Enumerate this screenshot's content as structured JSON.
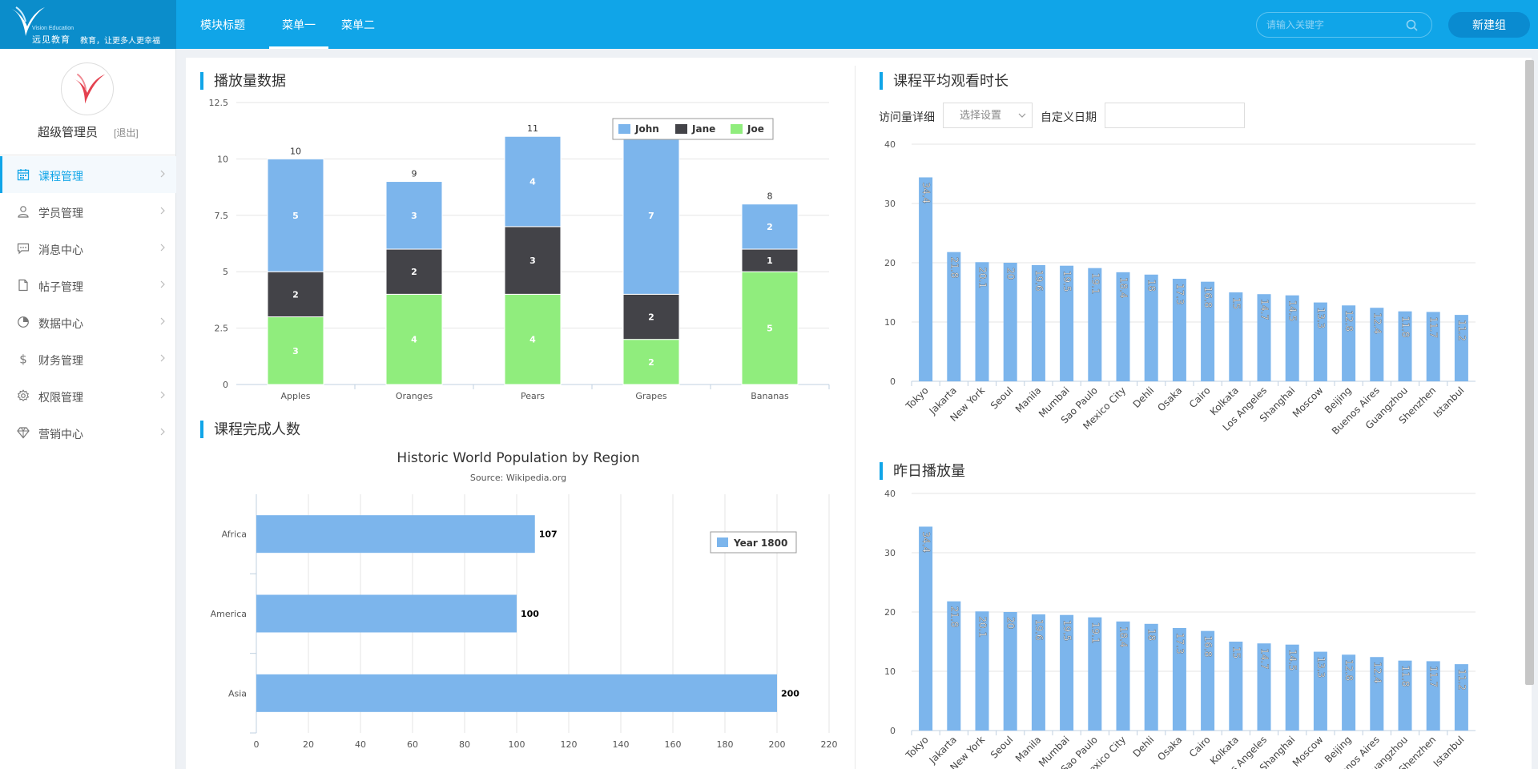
{
  "header": {
    "logo_en": "Vision Education",
    "logo_cn": "远见教育",
    "logo_slogan": "教育，让更多人更幸福",
    "nav": [
      {
        "label": "模块标题"
      },
      {
        "label": "菜单一"
      },
      {
        "label": "菜单二"
      }
    ],
    "search_placeholder": "请输入关键字",
    "new_button": "新建组"
  },
  "sidebar": {
    "admin_name": "超级管理员",
    "logout": "[退出]",
    "items": [
      {
        "label": "课程管理",
        "icon": "calendar-icon",
        "active": true
      },
      {
        "label": "学员管理",
        "icon": "user-icon"
      },
      {
        "label": "消息中心",
        "icon": "message-icon"
      },
      {
        "label": "帖子管理",
        "icon": "document-icon"
      },
      {
        "label": "数据中心",
        "icon": "pie-chart-icon"
      },
      {
        "label": "财务管理",
        "icon": "dollar-icon"
      },
      {
        "label": "权限管理",
        "icon": "gear-icon"
      },
      {
        "label": "营销中心",
        "icon": "diamond-icon"
      }
    ]
  },
  "sections": {
    "play_data": "播放量数据",
    "completion": "课程完成人数",
    "avg_watch": "课程平均观看时长",
    "yesterday": "昨日播放量"
  },
  "filters": {
    "visit_detail": "访问量详细",
    "select_placeholder": "选择设置",
    "custom_date": "自定义日期"
  },
  "colors": {
    "accent": "#10a5e8",
    "john": "#7cb5ec",
    "jane": "#434348",
    "joe": "#90ed7d"
  },
  "chart_data": [
    {
      "type": "bar",
      "stacked": true,
      "categories": [
        "Apples",
        "Oranges",
        "Pears",
        "Grapes",
        "Bananas"
      ],
      "series": [
        {
          "name": "John",
          "values": [
            5,
            3,
            4,
            7,
            2
          ]
        },
        {
          "name": "Jane",
          "values": [
            2,
            2,
            3,
            2,
            1
          ]
        },
        {
          "name": "Joe",
          "values": [
            3,
            4,
            4,
            2,
            5
          ]
        }
      ],
      "totals": [
        10,
        9,
        11,
        11,
        8
      ],
      "yticks": [
        "0",
        "2.5",
        "5",
        "7.5",
        "10",
        "12.5"
      ],
      "ylim": [
        0,
        12.5
      ],
      "legend": "top-right",
      "grid": true
    },
    {
      "type": "bar",
      "orientation": "horizontal",
      "title": "Historic World Population by Region",
      "subtitle": "Source: Wikipedia.org",
      "categories": [
        "Africa",
        "America",
        "Asia"
      ],
      "series": [
        {
          "name": "Year 1800",
          "values": [
            107,
            100,
            200
          ]
        }
      ],
      "xticks": [
        "0",
        "20",
        "40",
        "60",
        "80",
        "100",
        "120",
        "140",
        "160",
        "180",
        "200",
        "220"
      ],
      "xlim": [
        0,
        220
      ],
      "legend": "top-right",
      "grid": true
    },
    {
      "type": "bar",
      "categories": [
        "Tokyo",
        "Jakarta",
        "New York",
        "Seoul",
        "Manila",
        "Mumbai",
        "Sao Paulo",
        "Mexico City",
        "Dehli",
        "Osaka",
        "Cairo",
        "Kolkata",
        "Los Angeles",
        "Shanghai",
        "Moscow",
        "Beijing",
        "Buenos Aires",
        "Guangzhou",
        "Shenzhen",
        "Istanbul"
      ],
      "values": [
        34.4,
        21.8,
        20.1,
        20,
        19.6,
        19.5,
        19.1,
        18.4,
        18,
        17.3,
        16.8,
        15,
        14.7,
        14.5,
        13.3,
        12.8,
        12.4,
        11.8,
        11.7,
        11.2
      ],
      "labels": [
        "34.4",
        "21.8",
        "20.1",
        "20",
        "19.6",
        "19.5",
        "19.1",
        "18.4",
        "18",
        "17.3",
        "16.8",
        "15",
        "14.7",
        "14.5",
        "13.3",
        "12.8",
        "12.4",
        "11.8",
        "11.7",
        "11.2"
      ],
      "yticks": [
        "0",
        "10",
        "20",
        "30",
        "40"
      ],
      "ylim": [
        0,
        40
      ],
      "grid": true
    },
    {
      "type": "bar",
      "categories": [
        "Tokyo",
        "Jakarta",
        "New York",
        "Seoul",
        "Manila",
        "Mumbai",
        "Sao Paulo",
        "Mexico City",
        "Dehli",
        "Osaka",
        "Cairo",
        "Kolkata",
        "Los Angeles",
        "Shanghai",
        "Moscow",
        "Beijing",
        "Buenos Aires",
        "Guangzhou",
        "Shenzhen",
        "Istanbul"
      ],
      "values": [
        34.4,
        21.8,
        20.1,
        20,
        19.6,
        19.5,
        19.1,
        18.4,
        18,
        17.3,
        16.8,
        15,
        14.7,
        14.5,
        13.3,
        12.8,
        12.4,
        11.8,
        11.7,
        11.2
      ],
      "labels": [
        "34.4",
        "21.8",
        "20.1",
        "20",
        "19.6",
        "19.5",
        "19.1",
        "18.4",
        "18",
        "17.3",
        "16.8",
        "15",
        "14.7",
        "14.5",
        "13.3",
        "12.8",
        "12.4",
        "11.8",
        "11.7",
        "11.2"
      ],
      "yticks": [
        "0",
        "10",
        "20",
        "30",
        "40"
      ],
      "ylim": [
        0,
        40
      ],
      "grid": true
    }
  ]
}
